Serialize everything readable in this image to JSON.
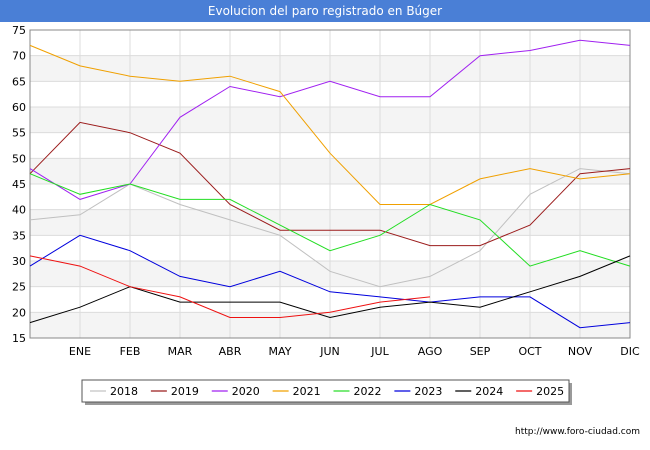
{
  "header": {
    "title": "Evolucion del paro registrado en Búger"
  },
  "footer": {
    "source": "http://www.foro-ciudad.com"
  },
  "chart_data": {
    "type": "line",
    "title": "Evolucion del paro registrado en Búger",
    "xlabel": "",
    "ylabel": "",
    "categories": [
      "",
      "ENE",
      "FEB",
      "MAR",
      "ABR",
      "MAY",
      "JUN",
      "JUL",
      "AGO",
      "SEP",
      "OCT",
      "NOV",
      "DIC"
    ],
    "ylim": [
      15,
      75
    ],
    "yticks": [
      15,
      20,
      25,
      30,
      35,
      40,
      45,
      50,
      55,
      60,
      65,
      70,
      75
    ],
    "grid": true,
    "legend_position": "bottom",
    "series": [
      {
        "name": "2018",
        "color": "#c0c0c0",
        "values": [
          38,
          39,
          45,
          41,
          38,
          35,
          28,
          25,
          27,
          32,
          43,
          48,
          47
        ]
      },
      {
        "name": "2019",
        "color": "#9b1c1c",
        "values": [
          47,
          57,
          55,
          51,
          41,
          36,
          36,
          36,
          33,
          33,
          37,
          47,
          48
        ]
      },
      {
        "name": "2020",
        "color": "#a020f0",
        "values": [
          48,
          42,
          45,
          58,
          64,
          62,
          65,
          62,
          62,
          70,
          71,
          73,
          72
        ]
      },
      {
        "name": "2021",
        "color": "#f0a000",
        "values": [
          72,
          68,
          66,
          65,
          66,
          63,
          51,
          41,
          41,
          46,
          48,
          46,
          47
        ]
      },
      {
        "name": "2022",
        "color": "#22dd22",
        "values": [
          47,
          43,
          45,
          42,
          42,
          37,
          32,
          35,
          41,
          38,
          29,
          32,
          29
        ]
      },
      {
        "name": "2023",
        "color": "#0000dd",
        "values": [
          29,
          35,
          32,
          27,
          25,
          28,
          24,
          23,
          22,
          23,
          23,
          17,
          18
        ]
      },
      {
        "name": "2024",
        "color": "#000000",
        "values": [
          18,
          21,
          25,
          22,
          22,
          22,
          19,
          21,
          22,
          21,
          24,
          27,
          31
        ]
      },
      {
        "name": "2025",
        "color": "#ee1111",
        "values": [
          31,
          29,
          25,
          23,
          19,
          19,
          20,
          22,
          23,
          null,
          null,
          null,
          null
        ]
      }
    ]
  }
}
